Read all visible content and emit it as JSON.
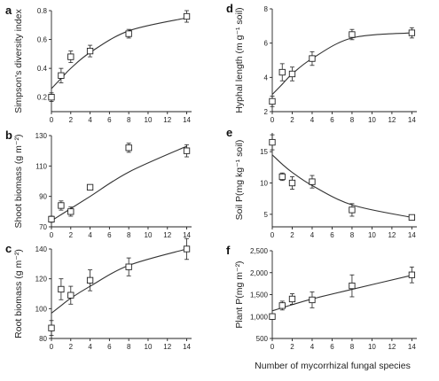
{
  "figure": {
    "xlabel": "Number of mycorrhizal fungal species"
  },
  "chart_data": [
    {
      "letter": "a",
      "type": "scatter",
      "ylabel": "Simpson's diversity index",
      "x": [
        0,
        1,
        2,
        4,
        8,
        14
      ],
      "y": [
        0.2,
        0.35,
        0.48,
        0.52,
        0.64,
        0.76
      ],
      "err": [
        0.03,
        0.05,
        0.04,
        0.04,
        0.03,
        0.04
      ],
      "fit": [
        0.26,
        0.33,
        0.4,
        0.51,
        0.66,
        0.75
      ],
      "ylim": [
        0.1,
        0.8
      ],
      "yticks": [
        0.2,
        0.4,
        0.6,
        0.8
      ],
      "yticklabels": [
        "0.2",
        "0.4",
        "0.6",
        "0.8"
      ],
      "xticks": [
        0,
        2,
        4,
        6,
        8,
        10,
        12,
        14
      ],
      "xticklabels": [
        "0",
        "2",
        "4",
        "6",
        "8",
        "10",
        "12",
        "14"
      ]
    },
    {
      "letter": "b",
      "type": "scatter",
      "ylabel": "Shoot biomass (g m⁻²)",
      "x": [
        0,
        1,
        2,
        4,
        8,
        14
      ],
      "y": [
        75,
        84,
        80,
        96,
        122,
        120
      ],
      "err": [
        2,
        3,
        3,
        1,
        3,
        4
      ],
      "fit": [
        74,
        78,
        82,
        90,
        106,
        123
      ],
      "ylim": [
        70,
        130
      ],
      "yticks": [
        70,
        90,
        110,
        130
      ],
      "yticklabels": [
        "70",
        "90",
        "110",
        "130"
      ],
      "xticks": [
        0,
        2,
        4,
        6,
        8,
        10,
        12,
        14
      ],
      "xticklabels": [
        "0",
        "2",
        "4",
        "6",
        "8",
        "10",
        "12",
        "14"
      ]
    },
    {
      "letter": "c",
      "type": "scatter",
      "ylabel": "Root biomass (g m⁻²)",
      "x": [
        0,
        1,
        2,
        4,
        8,
        14
      ],
      "y": [
        87,
        113,
        109,
        119,
        128,
        140
      ],
      "err": [
        5,
        7,
        6,
        7,
        6,
        7
      ],
      "fit": [
        97,
        102,
        107,
        115,
        129,
        140
      ],
      "ylim": [
        80,
        140
      ],
      "yticks": [
        80,
        100,
        120,
        140
      ],
      "yticklabels": [
        "80",
        "100",
        "120",
        "140"
      ],
      "xticks": [
        0,
        2,
        4,
        6,
        8,
        10,
        12,
        14
      ],
      "xticklabels": [
        "0",
        "2",
        "4",
        "6",
        "8",
        "10",
        "12",
        "14"
      ]
    },
    {
      "letter": "d",
      "type": "scatter",
      "ylabel": "Hyphal length (m g⁻¹ soil)",
      "x": [
        0,
        1,
        2,
        4,
        8,
        14
      ],
      "y": [
        2.6,
        4.3,
        4.2,
        5.1,
        6.5,
        6.6
      ],
      "err": [
        0.3,
        0.5,
        0.4,
        0.4,
        0.3,
        0.3
      ],
      "fit": [
        3.0,
        3.6,
        4.2,
        5.1,
        6.3,
        6.6
      ],
      "ylim": [
        2,
        8
      ],
      "yticks": [
        2,
        4,
        6,
        8
      ],
      "yticklabels": [
        "2",
        "4",
        "6",
        "8"
      ],
      "xticks": [
        0,
        2,
        4,
        6,
        8,
        10,
        12,
        14
      ],
      "xticklabels": [
        "0",
        "2",
        "4",
        "6",
        "8",
        "10",
        "12",
        "14"
      ]
    },
    {
      "letter": "e",
      "type": "scatter",
      "ylabel": "Soil P(mg kg⁻¹ soil)",
      "x": [
        0,
        1,
        2,
        4,
        8,
        14
      ],
      "y": [
        16.5,
        11.0,
        10.0,
        10.2,
        5.7,
        4.5
      ],
      "err": [
        1.2,
        0.6,
        1.0,
        1.0,
        1.0,
        0.4
      ],
      "fit": [
        14.5,
        13.0,
        11.7,
        9.6,
        6.5,
        4.5
      ],
      "ylim": [
        3,
        18
      ],
      "yticks": [
        5,
        10,
        15
      ],
      "yticklabels": [
        "5",
        "10",
        "15"
      ],
      "xticks": [
        0,
        2,
        4,
        6,
        8,
        10,
        12,
        14
      ],
      "xticklabels": [
        "0",
        "2",
        "4",
        "6",
        "8",
        "10",
        "12",
        "14"
      ]
    },
    {
      "letter": "f",
      "type": "scatter",
      "ylabel": "Plant P(mg m⁻²)",
      "x": [
        0,
        1,
        2,
        4,
        8,
        14
      ],
      "y": [
        1000,
        1250,
        1400,
        1380,
        1700,
        1950
      ],
      "err": [
        60,
        100,
        120,
        180,
        250,
        180
      ],
      "fit": [
        1130,
        1200,
        1270,
        1400,
        1620,
        1940
      ],
      "ylim": [
        500,
        2500
      ],
      "yticks": [
        500,
        1000,
        1500,
        2000,
        2500
      ],
      "yticklabels": [
        "500",
        "1,000",
        "1,500",
        "2,000",
        "2,500"
      ],
      "xticks": [
        0,
        2,
        4,
        6,
        8,
        10,
        12,
        14
      ],
      "xticklabels": [
        "0",
        "2",
        "4",
        "6",
        "8",
        "10",
        "12",
        "14"
      ]
    }
  ]
}
